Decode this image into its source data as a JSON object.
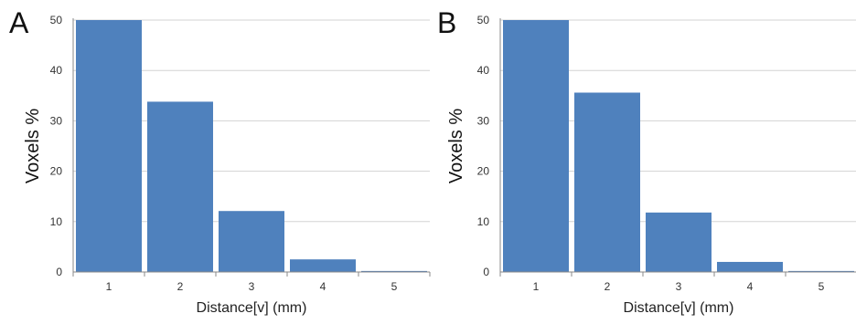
{
  "chart_data": [
    {
      "panel_label": "A",
      "type": "bar",
      "categories": [
        "1",
        "2",
        "3",
        "4",
        "5"
      ],
      "values": [
        50,
        33.8,
        12.1,
        2.5,
        0.2
      ],
      "xlabel": "Distance[v] (mm)",
      "ylabel": "Voxels %",
      "ylim": [
        0,
        50
      ],
      "yticks": [
        "0",
        "10",
        "20",
        "30",
        "40",
        "50"
      ],
      "grid": true,
      "bar_color": "#4f81bd"
    },
    {
      "panel_label": "B",
      "type": "bar",
      "categories": [
        "1",
        "2",
        "3",
        "4",
        "5"
      ],
      "values": [
        50,
        35.6,
        11.8,
        2.0,
        0.2
      ],
      "xlabel": "Distance[v] (mm)",
      "ylabel": "Voxels %",
      "ylim": [
        0,
        50
      ],
      "yticks": [
        "0",
        "10",
        "20",
        "30",
        "40",
        "50"
      ],
      "grid": true,
      "bar_color": "#4f81bd"
    }
  ]
}
